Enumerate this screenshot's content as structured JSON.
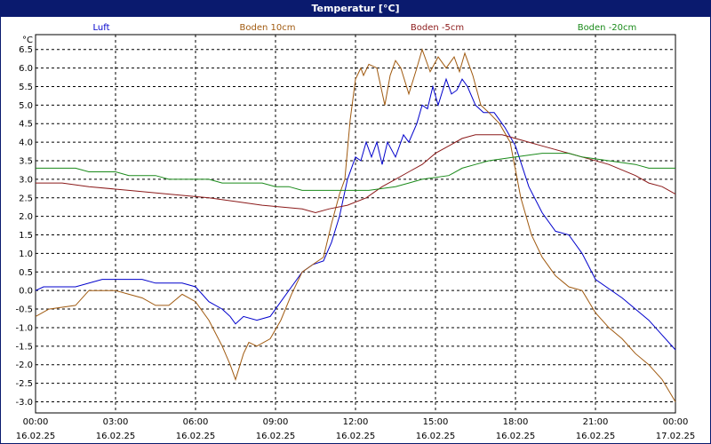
{
  "window": {
    "title": "Temperatur [°C]"
  },
  "chart_data": {
    "type": "line",
    "ylabel": "°C",
    "ylim": [
      -3.3,
      6.9
    ],
    "yticks": [
      "6.5",
      "6.0",
      "5.5",
      "5.0",
      "4.5",
      "4.0",
      "3.5",
      "3.0",
      "2.5",
      "2.0",
      "1.5",
      "1.0",
      "0.5",
      "0.0",
      "-0.5",
      "-1.0",
      "-1.5",
      "-2.0",
      "-2.5",
      "-3.0"
    ],
    "xlim": [
      0,
      24
    ],
    "xticks": [
      {
        "time": "00:00",
        "date": "16.02.25"
      },
      {
        "time": "03:00",
        "date": "16.02.25"
      },
      {
        "time": "06:00",
        "date": "16.02.25"
      },
      {
        "time": "09:00",
        "date": "16.02.25"
      },
      {
        "time": "12:00",
        "date": "16.02.25"
      },
      {
        "time": "15:00",
        "date": "16.02.25"
      },
      {
        "time": "18:00",
        "date": "16.02.25"
      },
      {
        "time": "21:00",
        "date": "16.02.25"
      },
      {
        "time": "00:00",
        "date": "17.02.25"
      }
    ],
    "grid": true,
    "legend_position": "top",
    "series": [
      {
        "name": "Luft",
        "color": "#0000cc",
        "points": [
          [
            0,
            0.0
          ],
          [
            0.3,
            0.1
          ],
          [
            1.5,
            0.1
          ],
          [
            2.5,
            0.3
          ],
          [
            4.0,
            0.3
          ],
          [
            4.5,
            0.2
          ],
          [
            5.5,
            0.2
          ],
          [
            6.0,
            0.1
          ],
          [
            6.5,
            -0.3
          ],
          [
            7.0,
            -0.5
          ],
          [
            7.3,
            -0.7
          ],
          [
            7.5,
            -0.9
          ],
          [
            7.8,
            -0.7
          ],
          [
            8.3,
            -0.8
          ],
          [
            8.8,
            -0.7
          ],
          [
            9.2,
            -0.3
          ],
          [
            9.6,
            0.1
          ],
          [
            10.0,
            0.5
          ],
          [
            10.4,
            0.7
          ],
          [
            10.8,
            0.8
          ],
          [
            11.1,
            1.3
          ],
          [
            11.4,
            2.0
          ],
          [
            11.7,
            3.0
          ],
          [
            12.0,
            3.6
          ],
          [
            12.2,
            3.5
          ],
          [
            12.4,
            4.0
          ],
          [
            12.6,
            3.6
          ],
          [
            12.8,
            4.0
          ],
          [
            13.0,
            3.4
          ],
          [
            13.2,
            4.0
          ],
          [
            13.5,
            3.6
          ],
          [
            13.8,
            4.2
          ],
          [
            14.0,
            4.0
          ],
          [
            14.3,
            4.5
          ],
          [
            14.5,
            5.0
          ],
          [
            14.7,
            4.9
          ],
          [
            14.9,
            5.5
          ],
          [
            15.1,
            5.0
          ],
          [
            15.4,
            5.7
          ],
          [
            15.6,
            5.3
          ],
          [
            15.8,
            5.4
          ],
          [
            16.0,
            5.7
          ],
          [
            16.2,
            5.5
          ],
          [
            16.5,
            5.0
          ],
          [
            16.8,
            4.8
          ],
          [
            17.2,
            4.8
          ],
          [
            17.6,
            4.4
          ],
          [
            18.0,
            3.9
          ],
          [
            18.5,
            2.8
          ],
          [
            19.0,
            2.1
          ],
          [
            19.5,
            1.6
          ],
          [
            20.0,
            1.5
          ],
          [
            20.5,
            1.0
          ],
          [
            21.0,
            0.3
          ],
          [
            22.0,
            -0.2
          ],
          [
            23.0,
            -0.8
          ],
          [
            23.5,
            -1.2
          ],
          [
            24.0,
            -1.6
          ]
        ]
      },
      {
        "name": "Boden 10cm",
        "color": "#a05a10",
        "points": [
          [
            0,
            -0.7
          ],
          [
            0.5,
            -0.5
          ],
          [
            1.5,
            -0.4
          ],
          [
            2.0,
            0.0
          ],
          [
            3.0,
            0.0
          ],
          [
            3.5,
            -0.1
          ],
          [
            4.0,
            -0.2
          ],
          [
            4.5,
            -0.4
          ],
          [
            5.0,
            -0.4
          ],
          [
            5.5,
            -0.1
          ],
          [
            6.0,
            -0.3
          ],
          [
            6.5,
            -0.8
          ],
          [
            7.0,
            -1.5
          ],
          [
            7.3,
            -2.0
          ],
          [
            7.5,
            -2.4
          ],
          [
            7.8,
            -1.7
          ],
          [
            8.0,
            -1.4
          ],
          [
            8.3,
            -1.5
          ],
          [
            8.8,
            -1.3
          ],
          [
            9.2,
            -0.8
          ],
          [
            9.6,
            -0.1
          ],
          [
            10.0,
            0.5
          ],
          [
            10.4,
            0.7
          ],
          [
            10.8,
            0.9
          ],
          [
            11.1,
            1.8
          ],
          [
            11.4,
            2.6
          ],
          [
            11.6,
            3.0
          ],
          [
            11.8,
            4.6
          ],
          [
            12.0,
            5.7
          ],
          [
            12.2,
            6.0
          ],
          [
            12.3,
            5.8
          ],
          [
            12.5,
            6.1
          ],
          [
            12.8,
            6.0
          ],
          [
            13.1,
            5.0
          ],
          [
            13.3,
            5.8
          ],
          [
            13.5,
            6.2
          ],
          [
            13.7,
            6.0
          ],
          [
            14.0,
            5.3
          ],
          [
            14.3,
            6.0
          ],
          [
            14.5,
            6.5
          ],
          [
            14.8,
            5.9
          ],
          [
            15.1,
            6.3
          ],
          [
            15.4,
            6.0
          ],
          [
            15.7,
            6.3
          ],
          [
            15.9,
            5.9
          ],
          [
            16.1,
            6.4
          ],
          [
            16.4,
            5.8
          ],
          [
            16.7,
            5.0
          ],
          [
            17.0,
            4.8
          ],
          [
            17.4,
            4.5
          ],
          [
            17.8,
            4.0
          ],
          [
            18.2,
            2.5
          ],
          [
            18.6,
            1.5
          ],
          [
            19.0,
            0.9
          ],
          [
            19.5,
            0.4
          ],
          [
            20.0,
            0.1
          ],
          [
            20.5,
            0.0
          ],
          [
            21.0,
            -0.6
          ],
          [
            21.5,
            -1.0
          ],
          [
            22.0,
            -1.3
          ],
          [
            22.5,
            -1.7
          ],
          [
            23.0,
            -2.0
          ],
          [
            23.5,
            -2.4
          ],
          [
            24.0,
            -3.0
          ]
        ]
      },
      {
        "name": "Boden -5cm",
        "color": "#8b1a1a",
        "points": [
          [
            0,
            2.9
          ],
          [
            1.0,
            2.9
          ],
          [
            2.0,
            2.8
          ],
          [
            3.5,
            2.7
          ],
          [
            5.0,
            2.6
          ],
          [
            6.5,
            2.5
          ],
          [
            7.5,
            2.4
          ],
          [
            8.5,
            2.3
          ],
          [
            10.0,
            2.2
          ],
          [
            10.5,
            2.1
          ],
          [
            11.0,
            2.2
          ],
          [
            11.7,
            2.3
          ],
          [
            12.4,
            2.5
          ],
          [
            13.0,
            2.8
          ],
          [
            13.5,
            3.0
          ],
          [
            14.0,
            3.2
          ],
          [
            14.5,
            3.4
          ],
          [
            15.0,
            3.7
          ],
          [
            15.5,
            3.9
          ],
          [
            16.0,
            4.1
          ],
          [
            16.5,
            4.2
          ],
          [
            17.5,
            4.2
          ],
          [
            18.0,
            4.1
          ],
          [
            18.5,
            4.0
          ],
          [
            19.0,
            3.9
          ],
          [
            20.0,
            3.7
          ],
          [
            20.5,
            3.6
          ],
          [
            21.5,
            3.4
          ],
          [
            22.5,
            3.1
          ],
          [
            23.0,
            2.9
          ],
          [
            23.5,
            2.8
          ],
          [
            24.0,
            2.6
          ]
        ]
      },
      {
        "name": "Boden -20cm",
        "color": "#1a8a1a",
        "points": [
          [
            0,
            3.3
          ],
          [
            1.5,
            3.3
          ],
          [
            2.0,
            3.2
          ],
          [
            3.0,
            3.2
          ],
          [
            3.5,
            3.1
          ],
          [
            4.5,
            3.1
          ],
          [
            5.0,
            3.0
          ],
          [
            6.5,
            3.0
          ],
          [
            7.0,
            2.9
          ],
          [
            8.5,
            2.9
          ],
          [
            9.0,
            2.8
          ],
          [
            9.5,
            2.8
          ],
          [
            10.0,
            2.7
          ],
          [
            12.5,
            2.7
          ],
          [
            13.5,
            2.8
          ],
          [
            14.0,
            2.9
          ],
          [
            14.5,
            3.0
          ],
          [
            15.5,
            3.1
          ],
          [
            16.0,
            3.3
          ],
          [
            16.5,
            3.4
          ],
          [
            17.0,
            3.5
          ],
          [
            18.0,
            3.6
          ],
          [
            19.0,
            3.7
          ],
          [
            20.0,
            3.7
          ],
          [
            20.5,
            3.6
          ],
          [
            21.5,
            3.5
          ],
          [
            22.5,
            3.4
          ],
          [
            23.0,
            3.3
          ],
          [
            24.0,
            3.3
          ]
        ]
      }
    ]
  }
}
